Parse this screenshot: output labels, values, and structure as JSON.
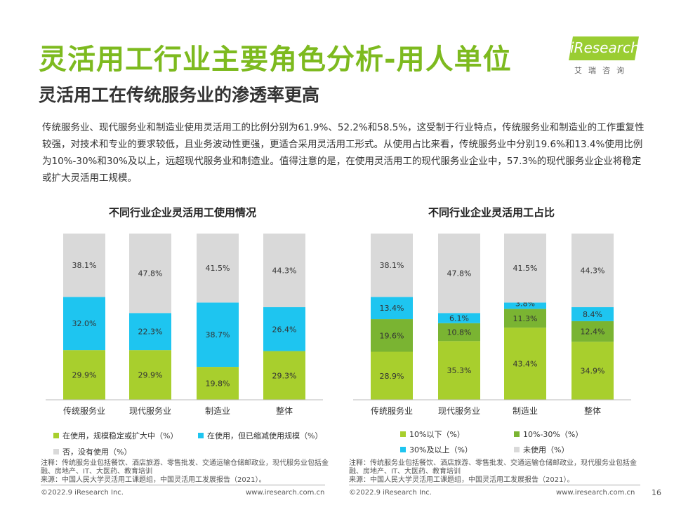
{
  "header": {
    "title": "灵活用工行业主要角色分析-用人单位",
    "subtitle": "灵活用工在传统服务业的渗透率更高",
    "logo_text": "iResearch",
    "logo_cn": "艾瑞咨询"
  },
  "body_text": "传统服务业、现代服务业和制造业使用灵活用工的比例分别为61.9%、52.2%和58.5%，这受制于行业特点，传统服务业和制造业的工作重复性较强，对技术和专业的要求较低，且业务波动性更强，更适合采用灵活用工形式。从使用占比来看，传统服务业中分别19.6%和13.4%使用比例为10%-30%和30%及以上，远超现代服务业和制造业。值得注意的是，在使用灵活用工的现代服务业企业中，57.3%的现代服务业企业将稳定或扩大灵活用工规模。",
  "chart_data": [
    {
      "type": "bar",
      "stacked": true,
      "title": "不同行业企业灵活用工使用情况",
      "categories": [
        "传统服务业",
        "现代服务业",
        "制造业",
        "整体"
      ],
      "series": [
        {
          "name": "在使用，规模稳定或扩大中（%）",
          "values": [
            29.9,
            29.9,
            19.8,
            29.3
          ],
          "labels": [
            "29.9%",
            "29.9%",
            "19.8%",
            "29.3%"
          ],
          "color": "#a8cf2d"
        },
        {
          "name": "在使用，但已缩减使用规模（%）",
          "values": [
            32.0,
            22.3,
            38.7,
            26.4
          ],
          "labels": [
            "32.0%",
            "22.3%",
            "38.7%",
            "26.4%"
          ],
          "color": "#1ec5f0"
        },
        {
          "name": "否，没有使用（%）",
          "values": [
            38.1,
            47.8,
            41.5,
            44.3
          ],
          "labels": [
            "38.1%",
            "47.8%",
            "41.5%",
            "44.3%"
          ],
          "color": "#d9d9d9"
        }
      ],
      "ylim": [
        0,
        100
      ]
    },
    {
      "type": "bar",
      "stacked": true,
      "title": "不同行业企业灵活用工占比",
      "categories": [
        "传统服务业",
        "现代服务业",
        "制造业",
        "整体"
      ],
      "series": [
        {
          "name": "10%以下（%）",
          "values": [
            28.9,
            35.3,
            43.4,
            34.9
          ],
          "labels": [
            "28.9%",
            "35.3%",
            "43.4%",
            "34.9%"
          ],
          "color": "#a8cf2d"
        },
        {
          "name": "10%-30%（%）",
          "values": [
            19.6,
            10.8,
            11.3,
            12.4
          ],
          "labels": [
            "19.6%",
            "10.8%",
            "11.3%",
            "12.4%"
          ],
          "color": "#7ab432"
        },
        {
          "name": "30%及以上（%）",
          "values": [
            13.4,
            6.1,
            3.8,
            8.4
          ],
          "labels": [
            "13.4%",
            "6.1%",
            "3.8%",
            "8.4%"
          ],
          "color": "#1ec5f0"
        },
        {
          "name": "未使用（%）",
          "values": [
            38.1,
            47.8,
            41.5,
            44.3
          ],
          "labels": [
            "38.1%",
            "47.8%",
            "41.5%",
            "44.3%"
          ],
          "color": "#d9d9d9"
        }
      ],
      "ylim": [
        0,
        100
      ]
    }
  ],
  "notes": {
    "left": "注释：传统服务业包括餐饮、酒店旅游、零售批发、交通运输仓储邮政业，现代服务业包括金融、房地产、IT、大医药、教育培训\n来源：中国人民大学灵活用工课题组，中国灵活用工发展报告（2021）。",
    "right": "注释：传统服务业包括餐饮、酒店旅游、零售批发、交通运输仓储邮政业，现代服务业包括金融、房地产、IT、大医药、教育培训\n来源：中国人民大学灵活用工课题组，中国灵活用工发展报告（2021）。"
  },
  "footer": {
    "copyright_left": "©2022.9 iResearch Inc.",
    "url_left": "www.iresearch.com.cn",
    "copyright_right": "©2022.9 iResearch Inc.",
    "url_right": "www.iresearch.com.cn",
    "page_number": "16"
  }
}
